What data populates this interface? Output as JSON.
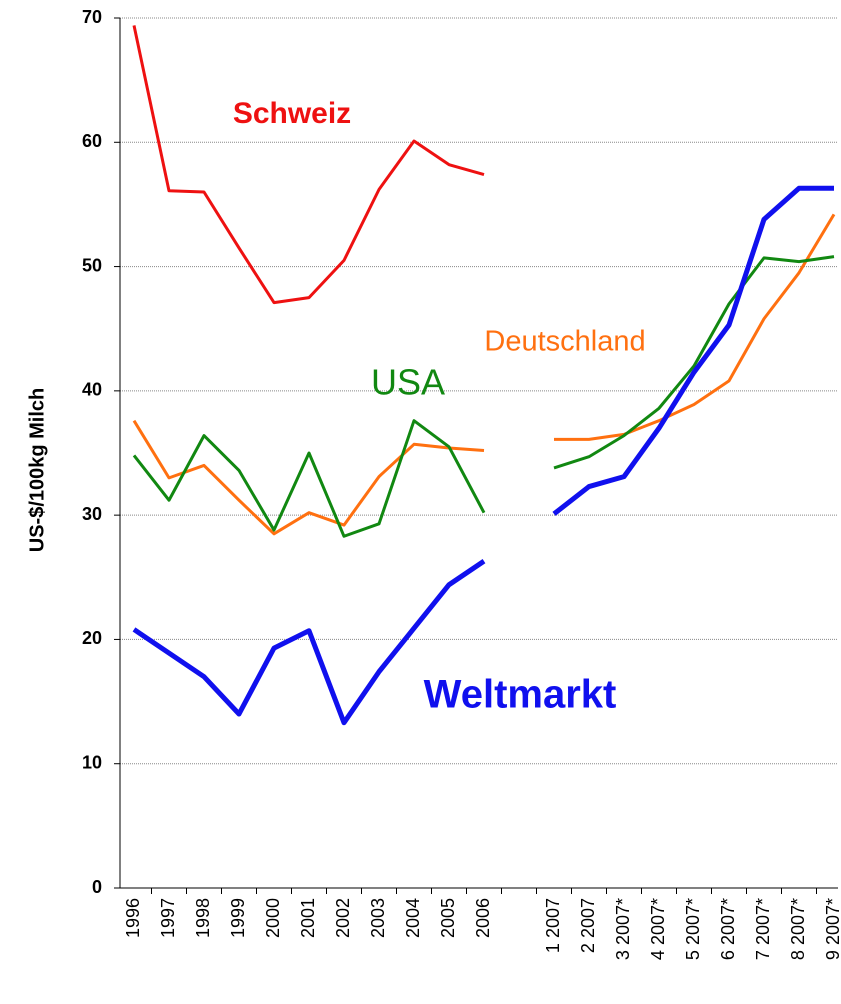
{
  "chart_data": {
    "type": "line",
    "y_label": "US-$/100kg Milch",
    "categories": [
      "1996",
      "1997",
      "1998",
      "1999",
      "2000",
      "2001",
      "2002",
      "2003",
      "2004",
      "2005",
      "2006",
      null,
      "1 2007",
      "2 2007",
      "3 2007*",
      "4 2007*",
      "5 2007*",
      "6 2007*",
      "7 2007*",
      "8 2007*",
      "9 2007*"
    ],
    "series": [
      {
        "name": "Schweiz",
        "color": "#ee1111",
        "values": [
          69.4,
          56.1,
          56.0,
          51.5,
          47.1,
          47.5,
          50.5,
          56.2,
          60.1,
          58.2,
          57.4,
          null,
          null,
          null,
          null,
          null,
          null,
          null,
          null,
          null,
          null
        ]
      },
      {
        "name": "Deutschland",
        "color": "#ff7010",
        "values": [
          37.6,
          33.0,
          34.0,
          31.2,
          28.5,
          30.2,
          29.2,
          33.1,
          35.7,
          35.4,
          35.2,
          null,
          36.1,
          36.1,
          36.5,
          37.6,
          38.9,
          40.8,
          45.8,
          49.5,
          54.2
        ]
      },
      {
        "name": "USA",
        "color": "#118811",
        "values": [
          34.8,
          31.2,
          36.4,
          33.6,
          28.8,
          35.0,
          28.3,
          29.3,
          37.6,
          35.5,
          30.2,
          null,
          33.8,
          34.7,
          36.4,
          38.6,
          42.0,
          47.0,
          50.7,
          50.4,
          50.8
        ]
      },
      {
        "name": "Weltmarkt",
        "color": "#1010ee",
        "values": [
          20.8,
          18.9,
          17.0,
          14.0,
          19.3,
          20.7,
          13.3,
          17.4,
          20.9,
          24.4,
          26.3,
          null,
          30.1,
          32.3,
          33.1,
          37.0,
          41.5,
          45.3,
          53.8,
          56.3,
          56.3
        ]
      }
    ],
    "ylim": [
      0,
      70
    ],
    "yticks": [
      0,
      10,
      20,
      30,
      40,
      50,
      60,
      70
    ],
    "grid": true
  }
}
